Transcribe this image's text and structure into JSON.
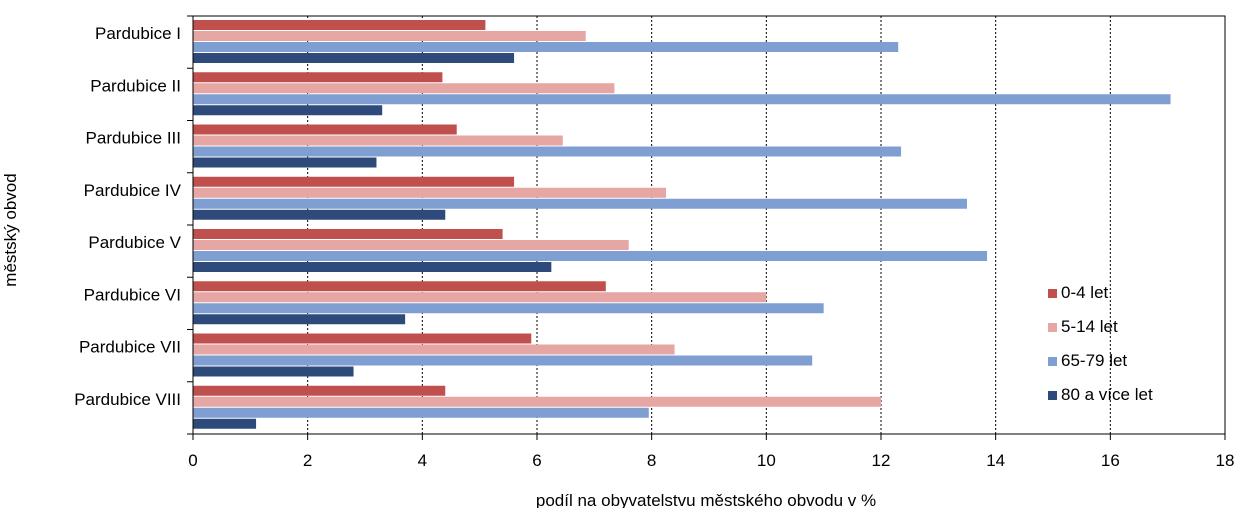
{
  "chart_data": {
    "type": "bar",
    "orientation": "horizontal",
    "title": "",
    "xlabel": "podíl na obyvatelstvu městského obvodu v %",
    "ylabel": "městský obvod",
    "xlim": [
      0,
      18
    ],
    "x_ticks": [
      0,
      2,
      4,
      6,
      8,
      10,
      12,
      14,
      16,
      18
    ],
    "grid": "vertical dotted",
    "legend_position": "right",
    "categories": [
      "Pardubice I",
      "Pardubice II",
      "Pardubice III",
      "Pardubice IV",
      "Pardubice V",
      "Pardubice VI",
      "Pardubice VII",
      "Pardubice VIII"
    ],
    "series": [
      {
        "name": "0-4 let",
        "color": "#c0504d",
        "values": [
          5.1,
          4.35,
          4.6,
          5.6,
          5.4,
          7.2,
          5.9,
          4.4
        ]
      },
      {
        "name": "5-14 let",
        "color": "#e6a6a4",
        "values": [
          6.85,
          7.35,
          6.45,
          8.25,
          7.6,
          10.0,
          8.4,
          12.0
        ]
      },
      {
        "name": "65-79 let",
        "color": "#7f9fd3",
        "values": [
          12.3,
          17.05,
          12.35,
          13.5,
          13.85,
          11.0,
          10.8,
          7.95
        ]
      },
      {
        "name": "80 a více let",
        "color": "#2e4a7a",
        "values": [
          5.6,
          3.3,
          3.2,
          4.4,
          6.25,
          3.7,
          2.8,
          1.1
        ]
      }
    ]
  }
}
